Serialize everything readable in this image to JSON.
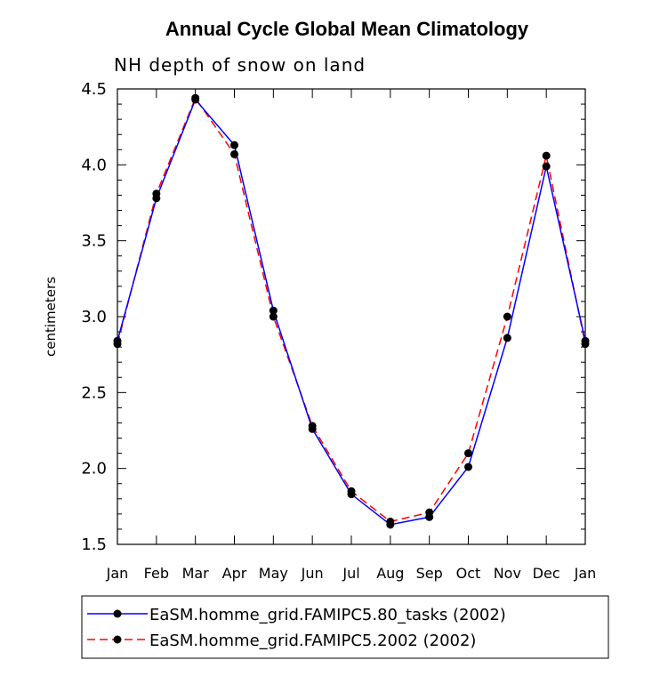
{
  "chart_data": {
    "type": "line",
    "title": "Annual Cycle Global Mean Climatology",
    "subtitle": "NH depth of snow on land",
    "xlabel": "",
    "ylabel": "centimeters",
    "ylim": [
      1.5,
      4.5
    ],
    "yticks": [
      "1.5",
      "2.0",
      "2.5",
      "3.0",
      "3.5",
      "4.0",
      "4.5"
    ],
    "categories": [
      "Jan",
      "Feb",
      "Mar",
      "Apr",
      "May",
      "Jun",
      "Jul",
      "Aug",
      "Sep",
      "Oct",
      "Nov",
      "Dec",
      "Jan"
    ],
    "series": [
      {
        "name": "EaSM.homme_grid.FAMIPC5.80_tasks (2002)",
        "color": "#0000ff",
        "style": "solid",
        "values": [
          2.84,
          3.78,
          4.43,
          4.13,
          3.04,
          2.26,
          1.83,
          1.63,
          1.68,
          2.01,
          2.86,
          3.99,
          2.84
        ]
      },
      {
        "name": "EaSM.homme_grid.FAMIPC5.2002 (2002)",
        "color": "#ff0000",
        "style": "dashed",
        "values": [
          2.82,
          3.81,
          4.44,
          4.07,
          3.0,
          2.28,
          1.85,
          1.65,
          1.71,
          2.1,
          3.0,
          4.06,
          2.82
        ]
      }
    ],
    "legend_position": "bottom"
  }
}
